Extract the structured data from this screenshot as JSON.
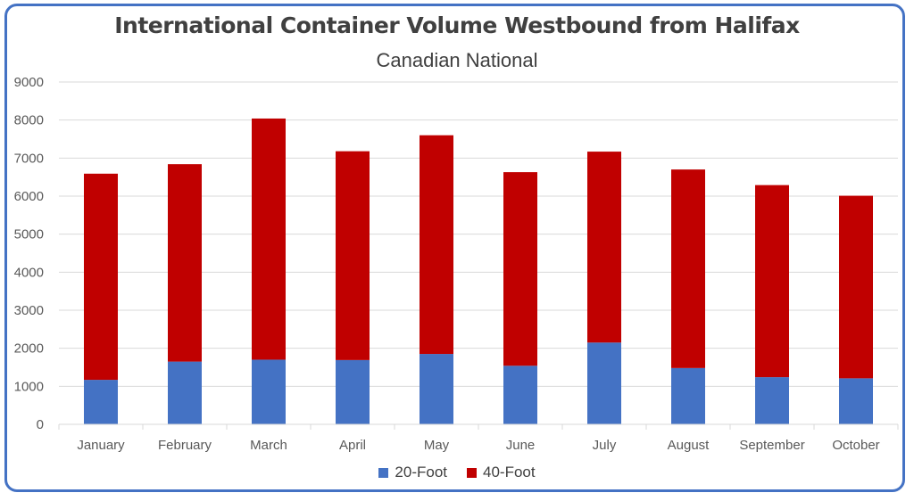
{
  "chart_data": {
    "type": "bar",
    "stacked": true,
    "title": "International Container Volume Westbound from Halifax",
    "subtitle": "Canadian National",
    "categories": [
      "January",
      "February",
      "March",
      "April",
      "May",
      "June",
      "July",
      "August",
      "September",
      "October"
    ],
    "series": [
      {
        "name": "20-Foot",
        "color": "#4472c4",
        "values": [
          1170,
          1650,
          1700,
          1690,
          1850,
          1540,
          2150,
          1480,
          1240,
          1210
        ]
      },
      {
        "name": "40-Foot",
        "color": "#c00000",
        "values": [
          5420,
          5190,
          6340,
          5490,
          5750,
          5090,
          5020,
          5220,
          5050,
          4800
        ]
      }
    ],
    "ylim": [
      0,
      9000
    ],
    "yticks": [
      0,
      1000,
      2000,
      3000,
      4000,
      5000,
      6000,
      7000,
      8000,
      9000
    ],
    "grid": true,
    "legend_position": "bottom"
  },
  "colors": {
    "frame": "#4472c4",
    "grid": "#d9d9d9",
    "text": "#404040"
  }
}
